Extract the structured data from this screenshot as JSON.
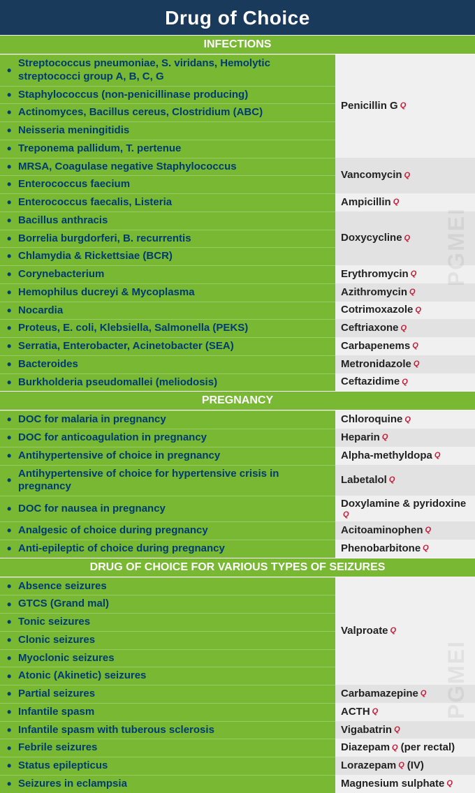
{
  "title": "Drug of Choice",
  "qmark": "Q",
  "watermark": "PGMEI",
  "colors": {
    "title_bg": "#1a3a5c",
    "section_bg": "#78b833",
    "left_text": "#003b73",
    "q_color": "#c41e3a",
    "right_odd": "#f0f0f0",
    "right_even": "#e2e2e2"
  },
  "sections": [
    {
      "header": "INFECTIONS",
      "groups": [
        {
          "left": [
            "Streptococcus pneumoniae, S. viridans, Hemolytic streptococci group A, B, C, G",
            "Staphylococcus (non-penicillinase producing)",
            "Actinomyces, Bacillus cereus, Clostridium (ABC)",
            "Neisseria meningitidis",
            "Treponema pallidum, T. pertenue"
          ],
          "right": "Penicillin G",
          "q": true,
          "shade": "odd"
        },
        {
          "left": [
            "MRSA, Coagulase negative Staphylococcus",
            "Enterococcus faecium"
          ],
          "right": "Vancomycin",
          "q": true,
          "shade": "even"
        },
        {
          "left": [
            "Enterococcus faecalis, Listeria"
          ],
          "right": "Ampicillin",
          "q": true,
          "shade": "odd"
        },
        {
          "left": [
            "Bacillus anthracis",
            "Borrelia burgdorferi, B. recurrentis",
            "Chlamydia & Rickettsiae (BCR)"
          ],
          "right": "Doxycycline",
          "q": true,
          "shade": "even"
        },
        {
          "left": [
            "Corynebacterium"
          ],
          "right": "Erythromycin",
          "q": true,
          "shade": "odd"
        },
        {
          "left": [
            "Hemophilus ducreyi & Mycoplasma"
          ],
          "right": "Azithromycin",
          "q": true,
          "shade": "even"
        },
        {
          "left": [
            "Nocardia"
          ],
          "right": "Cotrimoxazole",
          "q": true,
          "shade": "odd"
        },
        {
          "left": [
            "Proteus, E. coli, Klebsiella, Salmonella (PEKS)"
          ],
          "right": "Ceftriaxone",
          "q": true,
          "shade": "even"
        },
        {
          "left": [
            "Serratia, Enterobacter, Acinetobacter (SEA)"
          ],
          "right": "Carbapenems",
          "q": true,
          "shade": "odd"
        },
        {
          "left": [
            "Bacteroides"
          ],
          "right": "Metronidazole",
          "q": true,
          "shade": "even"
        },
        {
          "left": [
            "Burkholderia pseudomallei (meliodosis)"
          ],
          "right": "Ceftazidime",
          "q": true,
          "shade": "odd"
        }
      ]
    },
    {
      "header": "PREGNANCY",
      "groups": [
        {
          "left": [
            "DOC for malaria in pregnancy"
          ],
          "right": "Chloroquine",
          "q": true,
          "shade": "odd"
        },
        {
          "left": [
            "DOC for anticoagulation in pregnancy"
          ],
          "right": "Heparin",
          "q": true,
          "shade": "even"
        },
        {
          "left": [
            "Antihypertensive of choice in pregnancy"
          ],
          "right": "Alpha-methyldopa",
          "q": true,
          "shade": "odd"
        },
        {
          "left": [
            "Antihypertensive of choice for hypertensive crisis in pregnancy"
          ],
          "right": "Labetalol",
          "q": true,
          "shade": "even"
        },
        {
          "left": [
            "DOC for nausea in pregnancy"
          ],
          "right": "Doxylamine & pyridoxine",
          "q": true,
          "shade": "odd"
        },
        {
          "left": [
            "Analgesic of choice during pregnancy"
          ],
          "right": "Acitoaminophen",
          "q": true,
          "shade": "even"
        },
        {
          "left": [
            "Anti-epileptic of choice during pregnancy"
          ],
          "right": "Phenobarbitone",
          "q": true,
          "shade": "odd"
        }
      ]
    },
    {
      "header": "DRUG OF CHOICE FOR VARIOUS TYPES OF SEIZURES",
      "groups": [
        {
          "left": [
            "Absence seizures",
            "GTCS (Grand mal)",
            "Tonic seizures",
            "Clonic seizures",
            "Myoclonic seizures",
            "Atonic (Akinetic) seizures"
          ],
          "right": "Valproate",
          "q": true,
          "shade": "odd"
        },
        {
          "left": [
            "Partial seizures"
          ],
          "right": "Carbamazepine",
          "q": true,
          "shade": "even"
        },
        {
          "left": [
            "Infantile spasm"
          ],
          "right": "ACTH",
          "q": true,
          "shade": "odd"
        },
        {
          "left": [
            "Infantile spasm with tuberous sclerosis"
          ],
          "right": "Vigabatrin",
          "q": true,
          "shade": "even"
        },
        {
          "left": [
            "Febrile seizures"
          ],
          "right": "Diazepam",
          "q": true,
          "suffix": "(per rectal)",
          "shade": "odd"
        },
        {
          "left": [
            "Status epilepticus"
          ],
          "right": "Lorazepam",
          "q": true,
          "suffix": "(IV)",
          "shade": "even"
        },
        {
          "left": [
            "Seizures in eclampsia"
          ],
          "right": "Magnesium sulphate",
          "q": true,
          "shade": "odd"
        }
      ]
    }
  ]
}
